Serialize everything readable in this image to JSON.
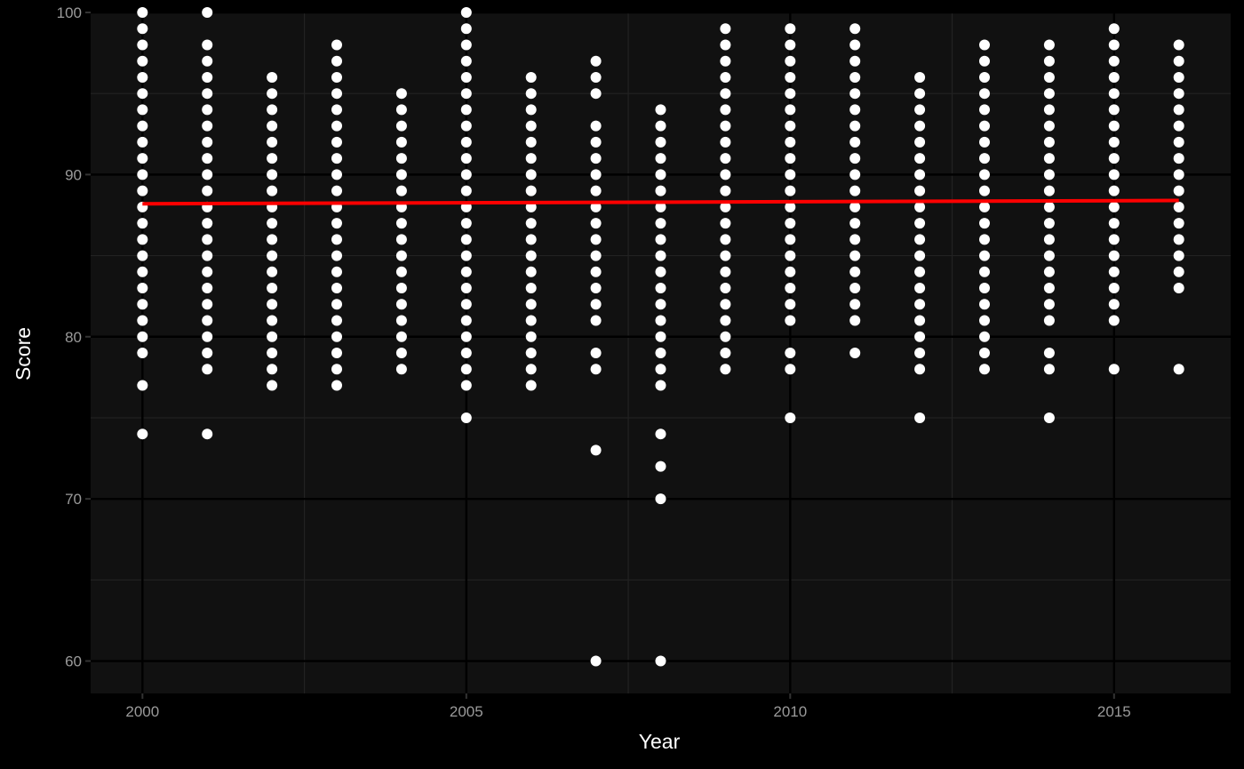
{
  "chart_data": {
    "type": "scatter",
    "title": "",
    "xlabel": "Year",
    "ylabel": "Score",
    "xlim": [
      1999.2,
      2016.8
    ],
    "ylim": [
      58,
      100
    ],
    "x_ticks": [
      2000,
      2005,
      2010,
      2015
    ],
    "y_ticks": [
      60,
      70,
      80,
      90,
      100
    ],
    "grid": true,
    "legend": "none",
    "colors": {
      "background": "#000000",
      "panel": "#111111",
      "grid_major": "#000000",
      "grid_minor": "#222222",
      "points": "#ffffff",
      "trend": "#ff0000"
    },
    "points": [
      {
        "year": 2000,
        "scores": [
          74,
          77,
          79,
          80,
          81,
          82,
          83,
          84,
          85,
          86,
          87,
          88,
          89,
          90,
          91,
          92,
          93,
          94,
          95,
          96,
          97,
          98,
          99,
          100
        ]
      },
      {
        "year": 2001,
        "scores": [
          74,
          78,
          79,
          80,
          81,
          82,
          83,
          84,
          85,
          86,
          87,
          88,
          89,
          90,
          91,
          92,
          93,
          94,
          95,
          96,
          97,
          98,
          100
        ]
      },
      {
        "year": 2002,
        "scores": [
          77,
          78,
          79,
          80,
          81,
          82,
          83,
          84,
          85,
          86,
          87,
          88,
          89,
          90,
          91,
          92,
          93,
          94,
          95,
          96
        ]
      },
      {
        "year": 2003,
        "scores": [
          77,
          78,
          79,
          80,
          81,
          82,
          83,
          84,
          85,
          86,
          87,
          88,
          89,
          90,
          91,
          92,
          93,
          94,
          95,
          96,
          97,
          98
        ]
      },
      {
        "year": 2004,
        "scores": [
          78,
          79,
          80,
          81,
          82,
          83,
          84,
          85,
          86,
          87,
          88,
          89,
          90,
          91,
          92,
          93,
          94,
          95
        ]
      },
      {
        "year": 2005,
        "scores": [
          75,
          77,
          78,
          79,
          80,
          81,
          82,
          83,
          84,
          85,
          86,
          87,
          88,
          89,
          90,
          91,
          92,
          93,
          94,
          95,
          96,
          97,
          98,
          99,
          100
        ]
      },
      {
        "year": 2006,
        "scores": [
          77,
          78,
          79,
          80,
          81,
          82,
          83,
          84,
          85,
          86,
          87,
          88,
          89,
          90,
          91,
          92,
          93,
          94,
          95,
          96
        ]
      },
      {
        "year": 2007,
        "scores": [
          60,
          73,
          78,
          79,
          81,
          82,
          83,
          84,
          85,
          86,
          87,
          88,
          89,
          90,
          91,
          92,
          93,
          95,
          96,
          97
        ]
      },
      {
        "year": 2008,
        "scores": [
          60,
          70,
          72,
          74,
          77,
          78,
          79,
          80,
          81,
          82,
          83,
          84,
          85,
          86,
          87,
          88,
          89,
          90,
          91,
          92,
          93,
          94
        ]
      },
      {
        "year": 2009,
        "scores": [
          78,
          79,
          80,
          81,
          82,
          83,
          84,
          85,
          86,
          87,
          88,
          89,
          90,
          91,
          92,
          93,
          94,
          95,
          96,
          97,
          98,
          99
        ]
      },
      {
        "year": 2010,
        "scores": [
          75,
          78,
          79,
          81,
          82,
          83,
          84,
          85,
          86,
          87,
          88,
          89,
          90,
          91,
          92,
          93,
          94,
          95,
          96,
          97,
          98,
          99
        ]
      },
      {
        "year": 2011,
        "scores": [
          79,
          81,
          82,
          83,
          84,
          85,
          86,
          87,
          88,
          89,
          90,
          91,
          92,
          93,
          94,
          95,
          96,
          97,
          98,
          99
        ]
      },
      {
        "year": 2012,
        "scores": [
          75,
          78,
          79,
          80,
          81,
          82,
          83,
          84,
          85,
          86,
          87,
          88,
          89,
          90,
          91,
          92,
          93,
          94,
          95,
          96
        ]
      },
      {
        "year": 2013,
        "scores": [
          78,
          79,
          80,
          81,
          82,
          83,
          84,
          85,
          86,
          87,
          88,
          89,
          90,
          91,
          92,
          93,
          94,
          95,
          96,
          97,
          98
        ]
      },
      {
        "year": 2014,
        "scores": [
          75,
          78,
          79,
          81,
          82,
          83,
          84,
          85,
          86,
          87,
          88,
          89,
          90,
          91,
          92,
          93,
          94,
          95,
          96,
          97,
          98
        ]
      },
      {
        "year": 2015,
        "scores": [
          78,
          81,
          82,
          83,
          84,
          85,
          86,
          87,
          88,
          89,
          90,
          91,
          92,
          93,
          94,
          95,
          96,
          97,
          98,
          99
        ]
      },
      {
        "year": 2016,
        "scores": [
          78,
          83,
          84,
          85,
          86,
          87,
          88,
          89,
          90,
          91,
          92,
          93,
          94,
          95,
          96,
          97,
          98
        ]
      }
    ],
    "trend_line": {
      "x": [
        2000,
        2016
      ],
      "y": [
        88.2,
        88.4
      ]
    }
  }
}
